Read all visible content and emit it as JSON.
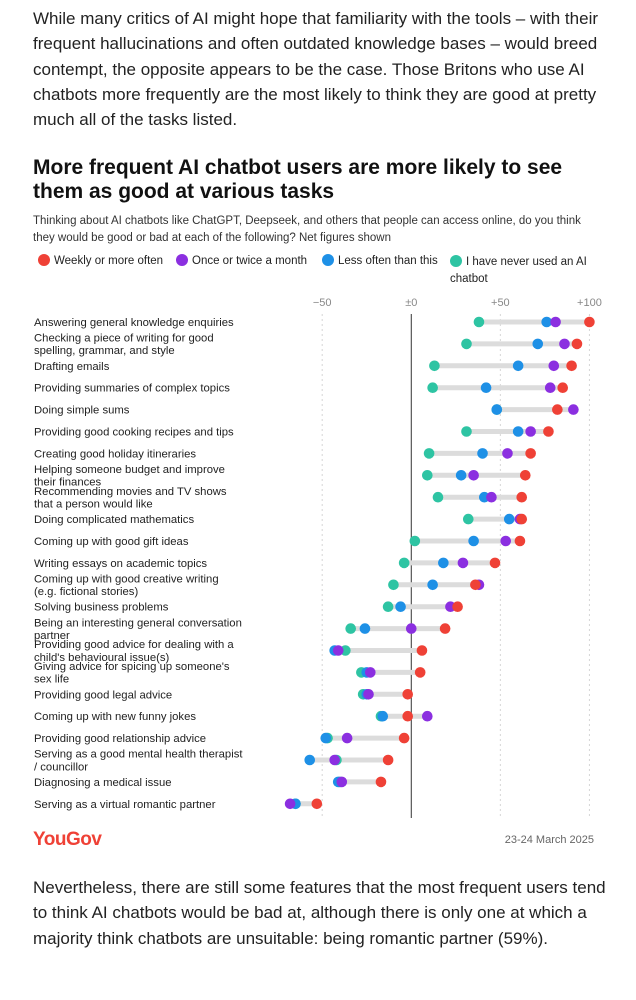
{
  "intro_text": "While many critics of AI might hope that familiarity with the tools – with their frequent hallucinations and often outdated knowledge bases – would breed contempt, the opposite appears to be the case. Those Britons who use AI chatbots more frequently are the most likely to think they are good at pretty much all of the tasks listed.",
  "outro_text": "Nevertheless, there are still some features that the most frequent users tend to think AI chatbots would be bad at, although there is only one at which a majority think chatbots are unsuitable: being romantic partner (59%).",
  "source": {
    "logo_text": "YouGov",
    "date": "23-24 March 2025"
  },
  "colors": {
    "weekly": "#ef4136",
    "monthly": "#8b2fe0",
    "less": "#1e90e6",
    "never": "#2ec4a3",
    "connector": "#dcdcdc",
    "grid": "#d6d6d6",
    "zero_line": "#333333"
  },
  "chart_data": {
    "type": "dot-range",
    "title": "More frequent AI chatbot users are more likely to see them as good at various tasks",
    "subtitle": "Thinking about AI chatbots like ChatGPT, Deepseek, and others that people can access online, do you think they would be good or bad at each of the following? Net figures shown",
    "legend": [
      "Weekly or more often",
      "Once or twice a month",
      "Less often than this",
      "I have never used an AI chatbot"
    ],
    "x_ticks": [
      -50,
      0,
      50,
      100
    ],
    "x_tick_labels": [
      "−50",
      "±0",
      "+50",
      "+100"
    ],
    "xlim": [
      -72,
      102
    ],
    "categories": [
      [
        "Answering general knowledge enquiries"
      ],
      [
        "Checking a piece of writing for good",
        "spelling, grammar, and style"
      ],
      [
        "Drafting emails"
      ],
      [
        "Providing summaries of complex topics"
      ],
      [
        "Doing simple sums"
      ],
      [
        "Providing good cooking recipes and tips"
      ],
      [
        "Creating good holiday itineraries"
      ],
      [
        "Helping someone budget and improve",
        "their finances"
      ],
      [
        "Recommending movies and TV shows",
        "that a person would like"
      ],
      [
        "Doing complicated mathematics"
      ],
      [
        "Coming up with good gift ideas"
      ],
      [
        "Writing essays on academic topics"
      ],
      [
        "Coming up with good creative writing",
        "(e.g. fictional stories)"
      ],
      [
        "Solving business problems"
      ],
      [
        "Being an interesting general conversation",
        "partner"
      ],
      [
        "Providing good advice for dealing with a",
        "child's behavioural issue(s)"
      ],
      [
        "Giving advice for spicing up someone's",
        "sex life"
      ],
      [
        "Providing good legal advice"
      ],
      [
        "Coming up with new funny jokes"
      ],
      [
        "Providing good relationship advice"
      ],
      [
        "Serving as a good mental health therapist",
        "/ councillor"
      ],
      [
        "Diagnosing a medical issue"
      ],
      [
        "Serving as a virtual romantic partner"
      ]
    ],
    "series": [
      {
        "name": "Weekly or more often",
        "color_key": "weekly",
        "values": [
          100,
          93,
          90,
          85,
          82,
          77,
          67,
          64,
          62,
          62,
          61,
          47,
          36,
          26,
          19,
          6,
          5,
          -2,
          -2,
          -4,
          -13,
          -17,
          -53
        ]
      },
      {
        "name": "Once or twice a month",
        "color_key": "monthly",
        "values": [
          81,
          86,
          80,
          78,
          91,
          67,
          54,
          35,
          45,
          61,
          53,
          29,
          38,
          22,
          0,
          -41,
          -23,
          -24,
          9,
          -36,
          -43,
          -39,
          -68
        ]
      },
      {
        "name": "Less often than this",
        "color_key": "less",
        "values": [
          76,
          71,
          60,
          42,
          48,
          60,
          40,
          28,
          41,
          55,
          35,
          18,
          12,
          -6,
          -26,
          -43,
          -25,
          -25,
          -16,
          -48,
          -57,
          -41,
          -65
        ]
      },
      {
        "name": "I have never used an AI chatbot",
        "color_key": "never",
        "values": [
          38,
          31,
          13,
          12,
          48,
          31,
          10,
          9,
          15,
          32,
          2,
          -4,
          -10,
          -13,
          -34,
          -37,
          -28,
          -27,
          -17,
          -47,
          -42,
          -40,
          -65
        ]
      }
    ]
  }
}
